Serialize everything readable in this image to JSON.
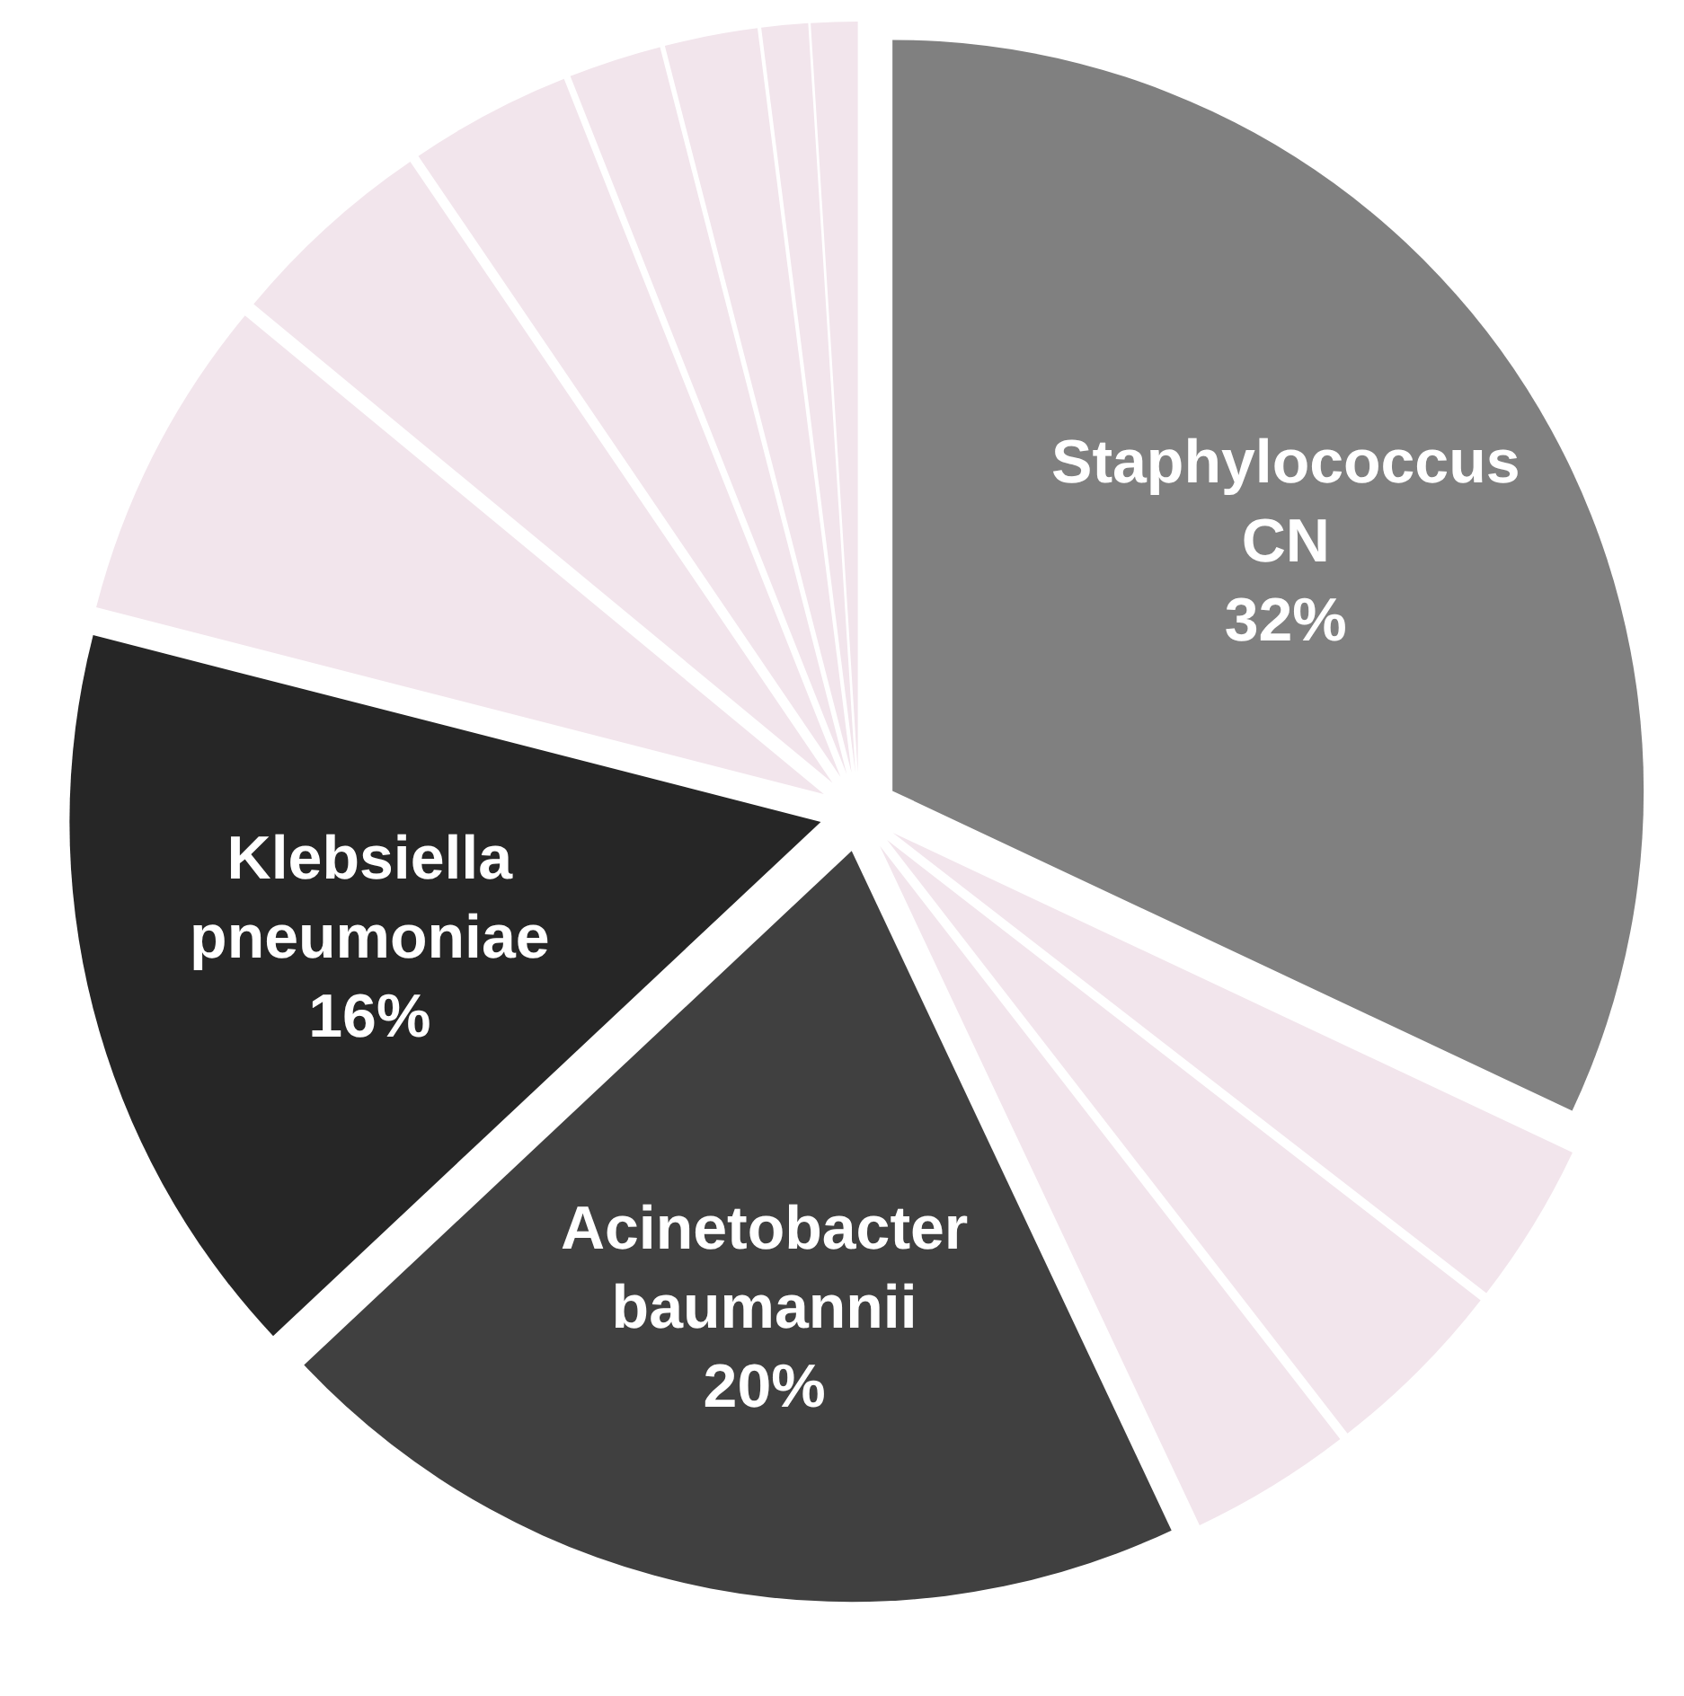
{
  "chart_data": {
    "type": "pie",
    "categories": [
      "Staphylococcus CN",
      null,
      null,
      null,
      "Acinetobacter baumannii",
      "Klebsiella pneumoniae",
      null,
      null,
      null,
      null,
      null,
      null,
      null
    ],
    "values": [
      32,
      3.5,
      4,
      3.5,
      20,
      16,
      7,
      4.5,
      3.5,
      2,
      2,
      1,
      1
    ],
    "colors": [
      "#808080",
      "#f2e5ec",
      "#f2e5ec",
      "#f2e5ec",
      "#404040",
      "#262626",
      "#f2e5ec",
      "#f2e5ec",
      "#f2e5ec",
      "#f2e5ec",
      "#f2e5ec",
      "#f2e5ec",
      "#f2e5ec"
    ],
    "value_labels": [
      "32%",
      null,
      null,
      null,
      "20%",
      "16%",
      null,
      null,
      null,
      null,
      null,
      null,
      null
    ]
  }
}
